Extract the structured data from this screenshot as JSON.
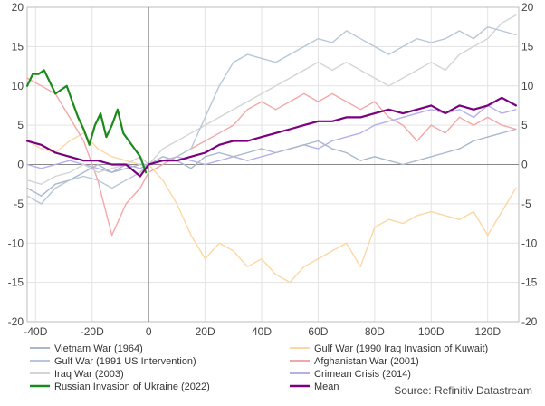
{
  "chart_data": {
    "type": "line",
    "title": "",
    "xlabel": "",
    "ylabel": "",
    "xlim": [
      -43,
      131
    ],
    "ylim": [
      -20,
      20
    ],
    "x_ticks": [
      -40,
      -20,
      0,
      20,
      40,
      60,
      80,
      100,
      120
    ],
    "x_tick_labels": [
      "-40D",
      "-20D",
      "0",
      "20D",
      "40D",
      "60D",
      "80D",
      "100D",
      "120D"
    ],
    "y_ticks": [
      -20,
      -15,
      -10,
      -5,
      0,
      5,
      10,
      15,
      20
    ],
    "y_tick_labels": [
      "-20",
      "-15",
      "-10",
      "-5",
      "0",
      "5",
      "10",
      "15",
      "20"
    ],
    "grid": true,
    "legend_position": "bottom",
    "source": "Source: Refinitiv Datastream",
    "series": [
      {
        "name": "Vietnam War (1964)",
        "color": "#a9b9cc",
        "x": [
          -43,
          -38,
          -33,
          -28,
          -23,
          -18,
          -13,
          -8,
          -3,
          0,
          5,
          10,
          15,
          20,
          25,
          30,
          35,
          40,
          45,
          50,
          55,
          60,
          65,
          70,
          75,
          80,
          85,
          90,
          95,
          100,
          105,
          110,
          115,
          120,
          125,
          130
        ],
        "y": [
          -3,
          -4,
          -2.5,
          -2,
          -1,
          0,
          -1,
          -0.5,
          0,
          0,
          1,
          0.5,
          -0.5,
          1,
          1.5,
          1,
          1.5,
          2,
          1.5,
          2,
          2.5,
          3,
          2,
          1.5,
          0.5,
          1,
          0.5,
          0,
          0.5,
          1,
          1.5,
          2,
          3,
          3.5,
          4,
          4.5
        ]
      },
      {
        "name": "Gulf War (1991 US Intervention)",
        "color": "#b7c7d9",
        "x": [
          -43,
          -38,
          -33,
          -28,
          -23,
          -18,
          -13,
          -8,
          -3,
          0,
          5,
          10,
          15,
          20,
          25,
          30,
          35,
          40,
          45,
          50,
          55,
          60,
          65,
          70,
          75,
          80,
          85,
          90,
          95,
          100,
          105,
          110,
          115,
          120,
          125,
          130
        ],
        "y": [
          -4,
          -5,
          -3,
          -2,
          -1.5,
          -2,
          -3,
          -2,
          -1,
          0,
          0.5,
          1,
          2,
          6,
          10,
          13,
          14,
          13.5,
          13,
          14,
          15,
          16,
          15.5,
          17,
          16,
          15,
          14,
          15,
          16,
          15.5,
          16,
          17,
          16,
          17.5,
          17,
          16.5
        ]
      },
      {
        "name": "Iraq War (2003)",
        "color": "#d4d4d4",
        "x": [
          -43,
          -38,
          -33,
          -28,
          -23,
          -18,
          -13,
          -8,
          -3,
          0,
          5,
          10,
          15,
          20,
          25,
          30,
          35,
          40,
          45,
          50,
          55,
          60,
          65,
          70,
          75,
          80,
          85,
          90,
          95,
          100,
          105,
          110,
          115,
          120,
          125,
          130
        ],
        "y": [
          -2,
          -2.5,
          -1.5,
          -1,
          0,
          -1,
          -0.5,
          0,
          1,
          0,
          2,
          3,
          4,
          5,
          6,
          7,
          8,
          9,
          10,
          11,
          12,
          13,
          12,
          13,
          12,
          11,
          10,
          11,
          12,
          13,
          12,
          14,
          15,
          16,
          18,
          19
        ]
      },
      {
        "name": "Russian Invasion of Ukraine (2022)",
        "color": "#1a8a1a",
        "x": [
          -43,
          -41,
          -39,
          -37,
          -35,
          -33,
          -31,
          -29,
          -27,
          -25,
          -23,
          -21,
          -19,
          -17,
          -15,
          -13,
          -11,
          -9,
          -7,
          -5,
          -3,
          -1
        ],
        "y": [
          10,
          11.5,
          11.5,
          12,
          10.5,
          9,
          9.5,
          10,
          8,
          6,
          4.5,
          2.5,
          5,
          6.5,
          3.5,
          5,
          7,
          4,
          3,
          2,
          1,
          -1
        ]
      },
      {
        "name": "Gulf War (1990 Iraq Invasion of Kuwait)",
        "color": "#fbd7a4",
        "x": [
          -43,
          -38,
          -33,
          -28,
          -23,
          -18,
          -13,
          -8,
          -3,
          0,
          5,
          10,
          15,
          20,
          25,
          30,
          35,
          40,
          45,
          50,
          55,
          60,
          65,
          70,
          75,
          80,
          85,
          90,
          95,
          100,
          105,
          110,
          115,
          120,
          125,
          130
        ],
        "y": [
          3,
          2,
          1.5,
          3,
          4,
          2,
          1,
          0.5,
          0,
          0,
          -2,
          -5,
          -9,
          -12,
          -10,
          -11,
          -13,
          -12,
          -14,
          -15,
          -13,
          -12,
          -11,
          -10,
          -13,
          -8,
          -7,
          -7.5,
          -6.5,
          -6,
          -6.5,
          -7,
          -6,
          -9,
          -6,
          -3
        ]
      },
      {
        "name": "Afghanistan War (2001)",
        "color": "#f2a8a8",
        "x": [
          -43,
          -38,
          -33,
          -28,
          -23,
          -18,
          -13,
          -8,
          -3,
          0,
          5,
          10,
          15,
          20,
          25,
          30,
          35,
          40,
          45,
          50,
          55,
          60,
          65,
          70,
          75,
          80,
          85,
          90,
          95,
          100,
          105,
          110,
          115,
          120,
          125,
          130
        ],
        "y": [
          11,
          10,
          9,
          6,
          3,
          -2,
          -9,
          -5,
          -3,
          -1,
          0,
          1,
          2,
          3,
          4,
          5,
          7,
          8,
          7,
          8,
          9,
          8,
          9,
          8,
          7,
          8,
          6,
          5,
          3,
          5,
          4,
          6,
          5,
          6,
          5,
          4.5
        ]
      },
      {
        "name": "Crimean Crisis (2014)",
        "color": "#b4b0ee",
        "x": [
          -43,
          -38,
          -33,
          -28,
          -23,
          -18,
          -13,
          -8,
          -3,
          0,
          5,
          10,
          15,
          20,
          25,
          30,
          35,
          40,
          45,
          50,
          55,
          60,
          65,
          70,
          75,
          80,
          85,
          90,
          95,
          100,
          105,
          110,
          115,
          120,
          125,
          130
        ],
        "y": [
          0,
          -0.5,
          0,
          0.5,
          0,
          -0.5,
          -1,
          0,
          -0.5,
          0,
          0.5,
          1,
          0.5,
          0,
          0.5,
          1,
          0.5,
          1,
          1.5,
          2,
          2.5,
          2,
          3,
          3.5,
          4,
          5,
          5.5,
          6,
          6.5,
          7,
          6.5,
          7,
          6,
          7.5,
          6.5,
          7
        ]
      },
      {
        "name": "Mean",
        "color": "#7a0080",
        "x": [
          -43,
          -38,
          -33,
          -28,
          -23,
          -18,
          -13,
          -8,
          -3,
          0,
          5,
          10,
          15,
          20,
          25,
          30,
          35,
          40,
          45,
          50,
          55,
          60,
          65,
          70,
          75,
          80,
          85,
          90,
          95,
          100,
          105,
          110,
          115,
          120,
          125,
          130
        ],
        "y": [
          3,
          2.5,
          1.5,
          1,
          0.5,
          0.5,
          0,
          0,
          -1.5,
          0,
          0.5,
          0.5,
          1,
          1.5,
          2.5,
          3,
          3,
          3.5,
          4,
          4.5,
          5,
          5.5,
          5.5,
          6,
          6,
          6.5,
          7,
          6.5,
          7,
          7.5,
          6.5,
          7.5,
          7,
          7.5,
          8.5,
          7.5
        ]
      }
    ]
  }
}
